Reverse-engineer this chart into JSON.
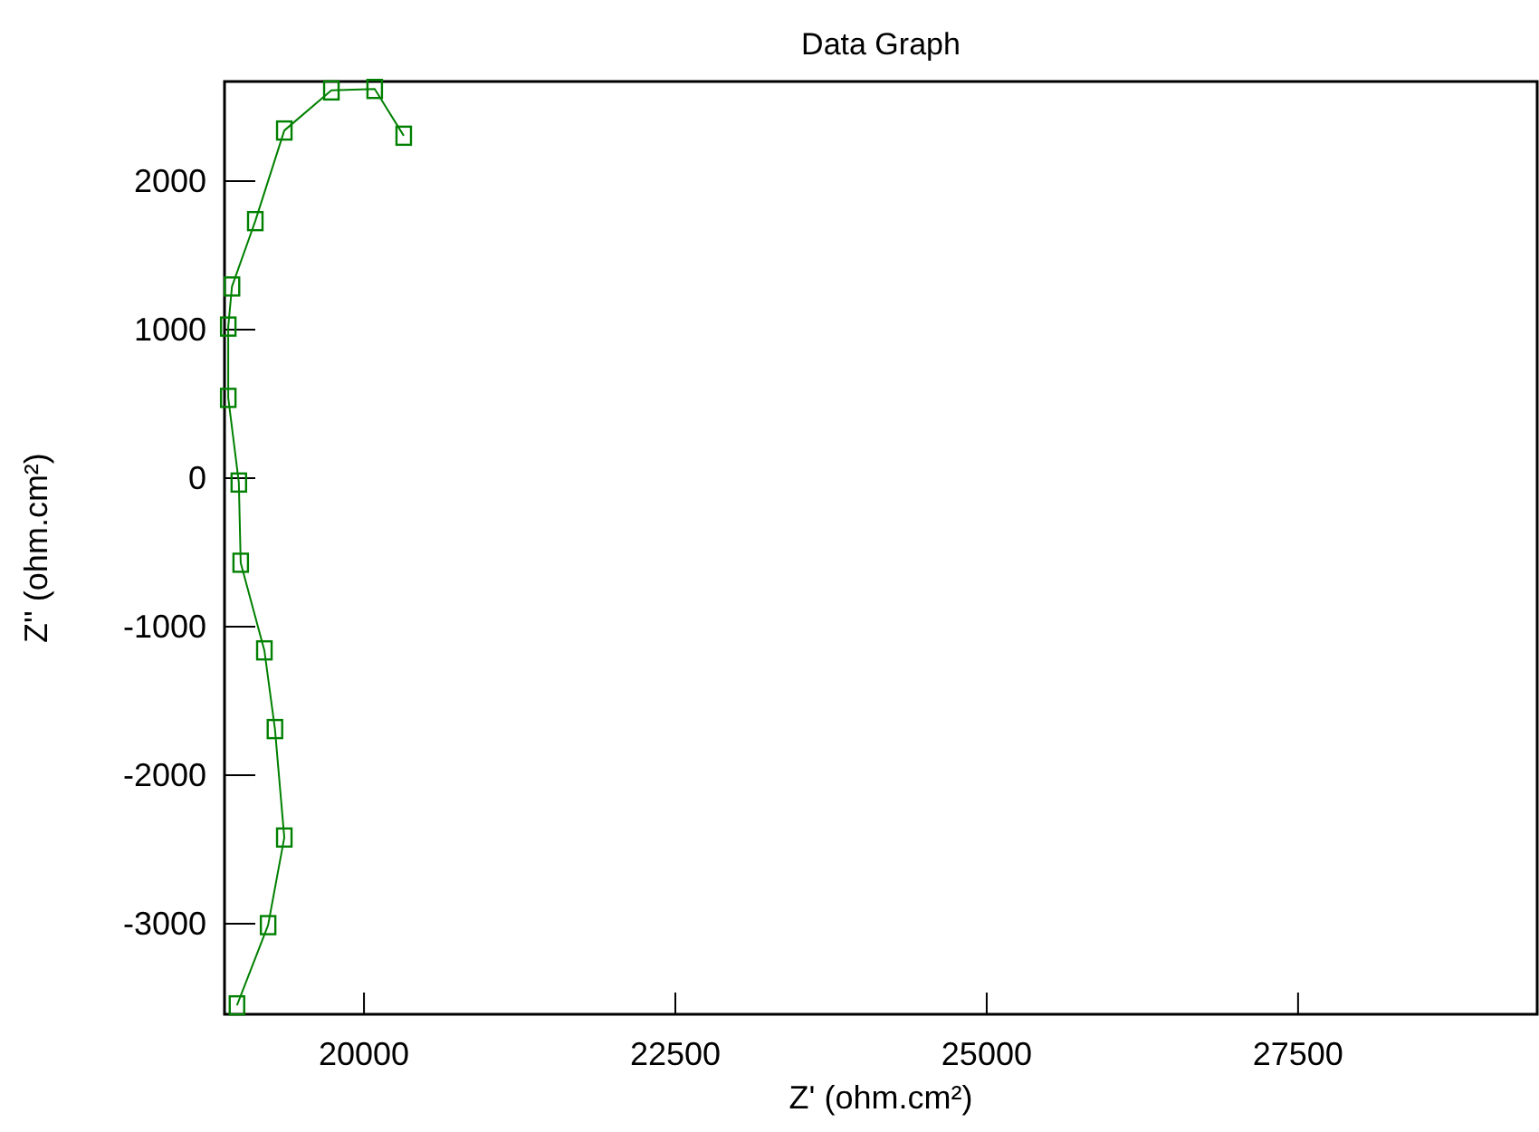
{
  "chart_data": {
    "type": "line",
    "title": "Data Graph",
    "xlabel": "Z' (ohm.cm²)",
    "ylabel": "Z'' (ohm.cm²)",
    "xlim": [
      18880,
      29420
    ],
    "ylim": [
      -3610,
      2670
    ],
    "xticks": [
      20000,
      22500,
      25000,
      27500
    ],
    "yticks": [
      -3000,
      -2000,
      -1000,
      0,
      1000,
      2000
    ],
    "grid": false,
    "marker": "square",
    "line_style": "solid",
    "series": [
      {
        "color": "#008000",
        "x": [
          18980,
          19230,
          19360,
          19285,
          19200,
          19010,
          18995,
          18910,
          18910,
          18940,
          19127,
          19360,
          19738,
          20086,
          20319
        ],
        "values": [
          -3550,
          -3010,
          -2420,
          -1690,
          -1160,
          -570,
          -30,
          540,
          1020,
          1290,
          1730,
          2340,
          2610,
          2620,
          2305
        ]
      }
    ]
  }
}
